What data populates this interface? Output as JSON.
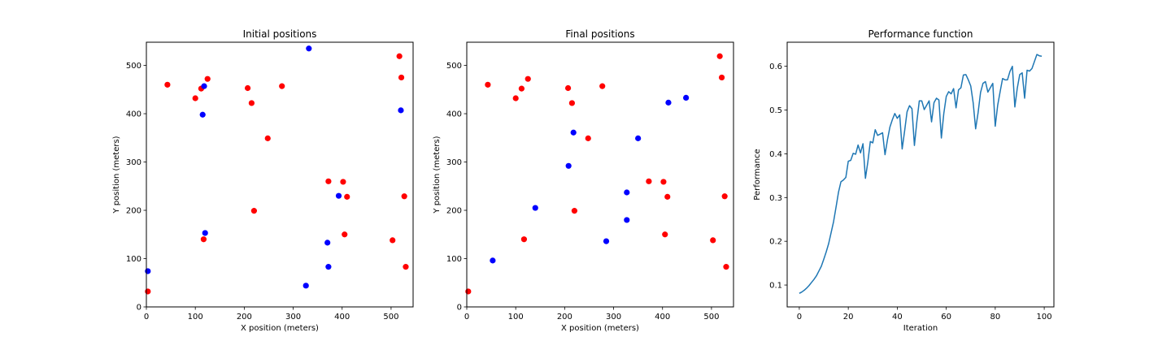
{
  "chart_data": [
    {
      "type": "scatter",
      "title": "Initial positions",
      "xlabel": "X position (meters)",
      "ylabel": "Y position (meters)",
      "xlim": [
        0,
        545
      ],
      "ylim": [
        0,
        548
      ],
      "xticks": [
        0,
        100,
        200,
        300,
        400,
        500
      ],
      "yticks": [
        0,
        100,
        200,
        300,
        400,
        500
      ],
      "grid": false,
      "series": [
        {
          "color": "#ff0000",
          "points": [
            [
              3,
              32
            ],
            [
              43,
              460
            ],
            [
              100,
              432
            ],
            [
              112,
              452
            ],
            [
              125,
              472
            ],
            [
              207,
              453
            ],
            [
              215,
              422
            ],
            [
              248,
              349
            ],
            [
              277,
              457
            ],
            [
              220,
              199
            ],
            [
              117,
              140
            ],
            [
              372,
              260
            ],
            [
              402,
              259
            ],
            [
              410,
              228
            ],
            [
              405,
              150
            ],
            [
              503,
              138
            ],
            [
              517,
              519
            ],
            [
              521,
              475
            ],
            [
              527,
              229
            ],
            [
              530,
              83
            ]
          ]
        },
        {
          "color": "#0000ff",
          "points": [
            [
              3,
              74
            ],
            [
              118,
              457
            ],
            [
              115,
              398
            ],
            [
              120,
              153
            ],
            [
              332,
              535
            ],
            [
              520,
              407
            ],
            [
              393,
              230
            ],
            [
              370,
              133
            ],
            [
              372,
              83
            ],
            [
              326,
              44
            ]
          ]
        }
      ]
    },
    {
      "type": "scatter",
      "title": "Final positions",
      "xlabel": "X position (meters)",
      "ylabel": "Y position (meters)",
      "xlim": [
        0,
        545
      ],
      "ylim": [
        0,
        548
      ],
      "xticks": [
        0,
        100,
        200,
        300,
        400,
        500
      ],
      "yticks": [
        0,
        100,
        200,
        300,
        400,
        500
      ],
      "grid": false,
      "series": [
        {
          "color": "#ff0000",
          "points": [
            [
              3,
              32
            ],
            [
              43,
              460
            ],
            [
              100,
              432
            ],
            [
              112,
              452
            ],
            [
              125,
              472
            ],
            [
              207,
              453
            ],
            [
              215,
              422
            ],
            [
              248,
              349
            ],
            [
              277,
              457
            ],
            [
              220,
              199
            ],
            [
              117,
              140
            ],
            [
              372,
              260
            ],
            [
              402,
              259
            ],
            [
              410,
              228
            ],
            [
              405,
              150
            ],
            [
              503,
              138
            ],
            [
              517,
              519
            ],
            [
              521,
              475
            ],
            [
              527,
              229
            ],
            [
              530,
              83
            ]
          ]
        },
        {
          "color": "#0000ff",
          "points": [
            [
              53,
              96
            ],
            [
              140,
              205
            ],
            [
              208,
              292
            ],
            [
              218,
              361
            ],
            [
              285,
              136
            ],
            [
              327,
              237
            ],
            [
              327,
              180
            ],
            [
              350,
              349
            ],
            [
              412,
              423
            ],
            [
              448,
              433
            ]
          ]
        }
      ]
    },
    {
      "type": "line",
      "title": "Performance function",
      "xlabel": "Iteration",
      "ylabel": "Performance",
      "xlim": [
        -4.95,
        103.95
      ],
      "ylim": [
        0.05,
        0.655
      ],
      "xticks": [
        0,
        20,
        40,
        60,
        80,
        100
      ],
      "yticks": [
        0.1,
        0.2,
        0.3,
        0.4,
        0.5,
        0.6
      ],
      "grid": false,
      "series": [
        {
          "color": "#1f77b4",
          "x": [
            0,
            1,
            2,
            3,
            4,
            5,
            6,
            7,
            8,
            9,
            10,
            11,
            12,
            13,
            14,
            15,
            16,
            17,
            18,
            19,
            20,
            21,
            22,
            23,
            24,
            25,
            26,
            27,
            28,
            29,
            30,
            31,
            32,
            33,
            34,
            35,
            36,
            37,
            38,
            39,
            40,
            41,
            42,
            43,
            44,
            45,
            46,
            47,
            48,
            49,
            50,
            51,
            52,
            53,
            54,
            55,
            56,
            57,
            58,
            59,
            60,
            61,
            62,
            63,
            64,
            65,
            66,
            67,
            68,
            69,
            70,
            71,
            72,
            73,
            74,
            75,
            76,
            77,
            78,
            79,
            80,
            81,
            82,
            83,
            84,
            85,
            86,
            87,
            88,
            89,
            90,
            91,
            92,
            93,
            94,
            95,
            96,
            97,
            98,
            99
          ],
          "y": [
            0.081,
            0.084,
            0.088,
            0.093,
            0.099,
            0.106,
            0.113,
            0.121,
            0.132,
            0.143,
            0.159,
            0.176,
            0.195,
            0.22,
            0.245,
            0.278,
            0.312,
            0.336,
            0.34,
            0.346,
            0.383,
            0.385,
            0.401,
            0.399,
            0.42,
            0.402,
            0.423,
            0.344,
            0.382,
            0.428,
            0.425,
            0.455,
            0.442,
            0.445,
            0.448,
            0.398,
            0.432,
            0.461,
            0.478,
            0.492,
            0.481,
            0.489,
            0.411,
            0.452,
            0.496,
            0.51,
            0.503,
            0.419,
            0.474,
            0.521,
            0.521,
            0.501,
            0.511,
            0.521,
            0.473,
            0.517,
            0.527,
            0.523,
            0.436,
            0.492,
            0.531,
            0.542,
            0.537,
            0.549,
            0.505,
            0.546,
            0.551,
            0.58,
            0.581,
            0.569,
            0.555,
            0.516,
            0.457,
            0.494,
            0.54,
            0.561,
            0.565,
            0.541,
            0.551,
            0.561,
            0.463,
            0.511,
            0.542,
            0.572,
            0.569,
            0.569,
            0.588,
            0.6,
            0.507,
            0.55,
            0.581,
            0.585,
            0.527,
            0.591,
            0.589,
            0.595,
            0.611,
            0.627,
            0.624,
            0.623
          ]
        }
      ]
    }
  ]
}
